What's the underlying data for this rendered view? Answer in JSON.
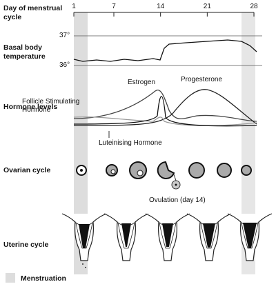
{
  "axis": {
    "title": "Day of menstrual cycle",
    "days": [
      1,
      7,
      14,
      21,
      28
    ]
  },
  "temperature": {
    "label": "Basal body temperature",
    "ticks": [
      "37°",
      "36°"
    ]
  },
  "hormones": {
    "label": "Hormone levels",
    "fsh": "Follicle Stimulating Hormone",
    "lh": "Luteinising Hormone",
    "estrogen": "Estrogen",
    "progesterone": "Progesterone"
  },
  "ovarian": {
    "label": "Ovarian cycle",
    "ovulation": "Ovulation (day 14)"
  },
  "uterine": {
    "label": "Uterine cycle"
  },
  "legend": {
    "label": "Menstruation"
  }
}
